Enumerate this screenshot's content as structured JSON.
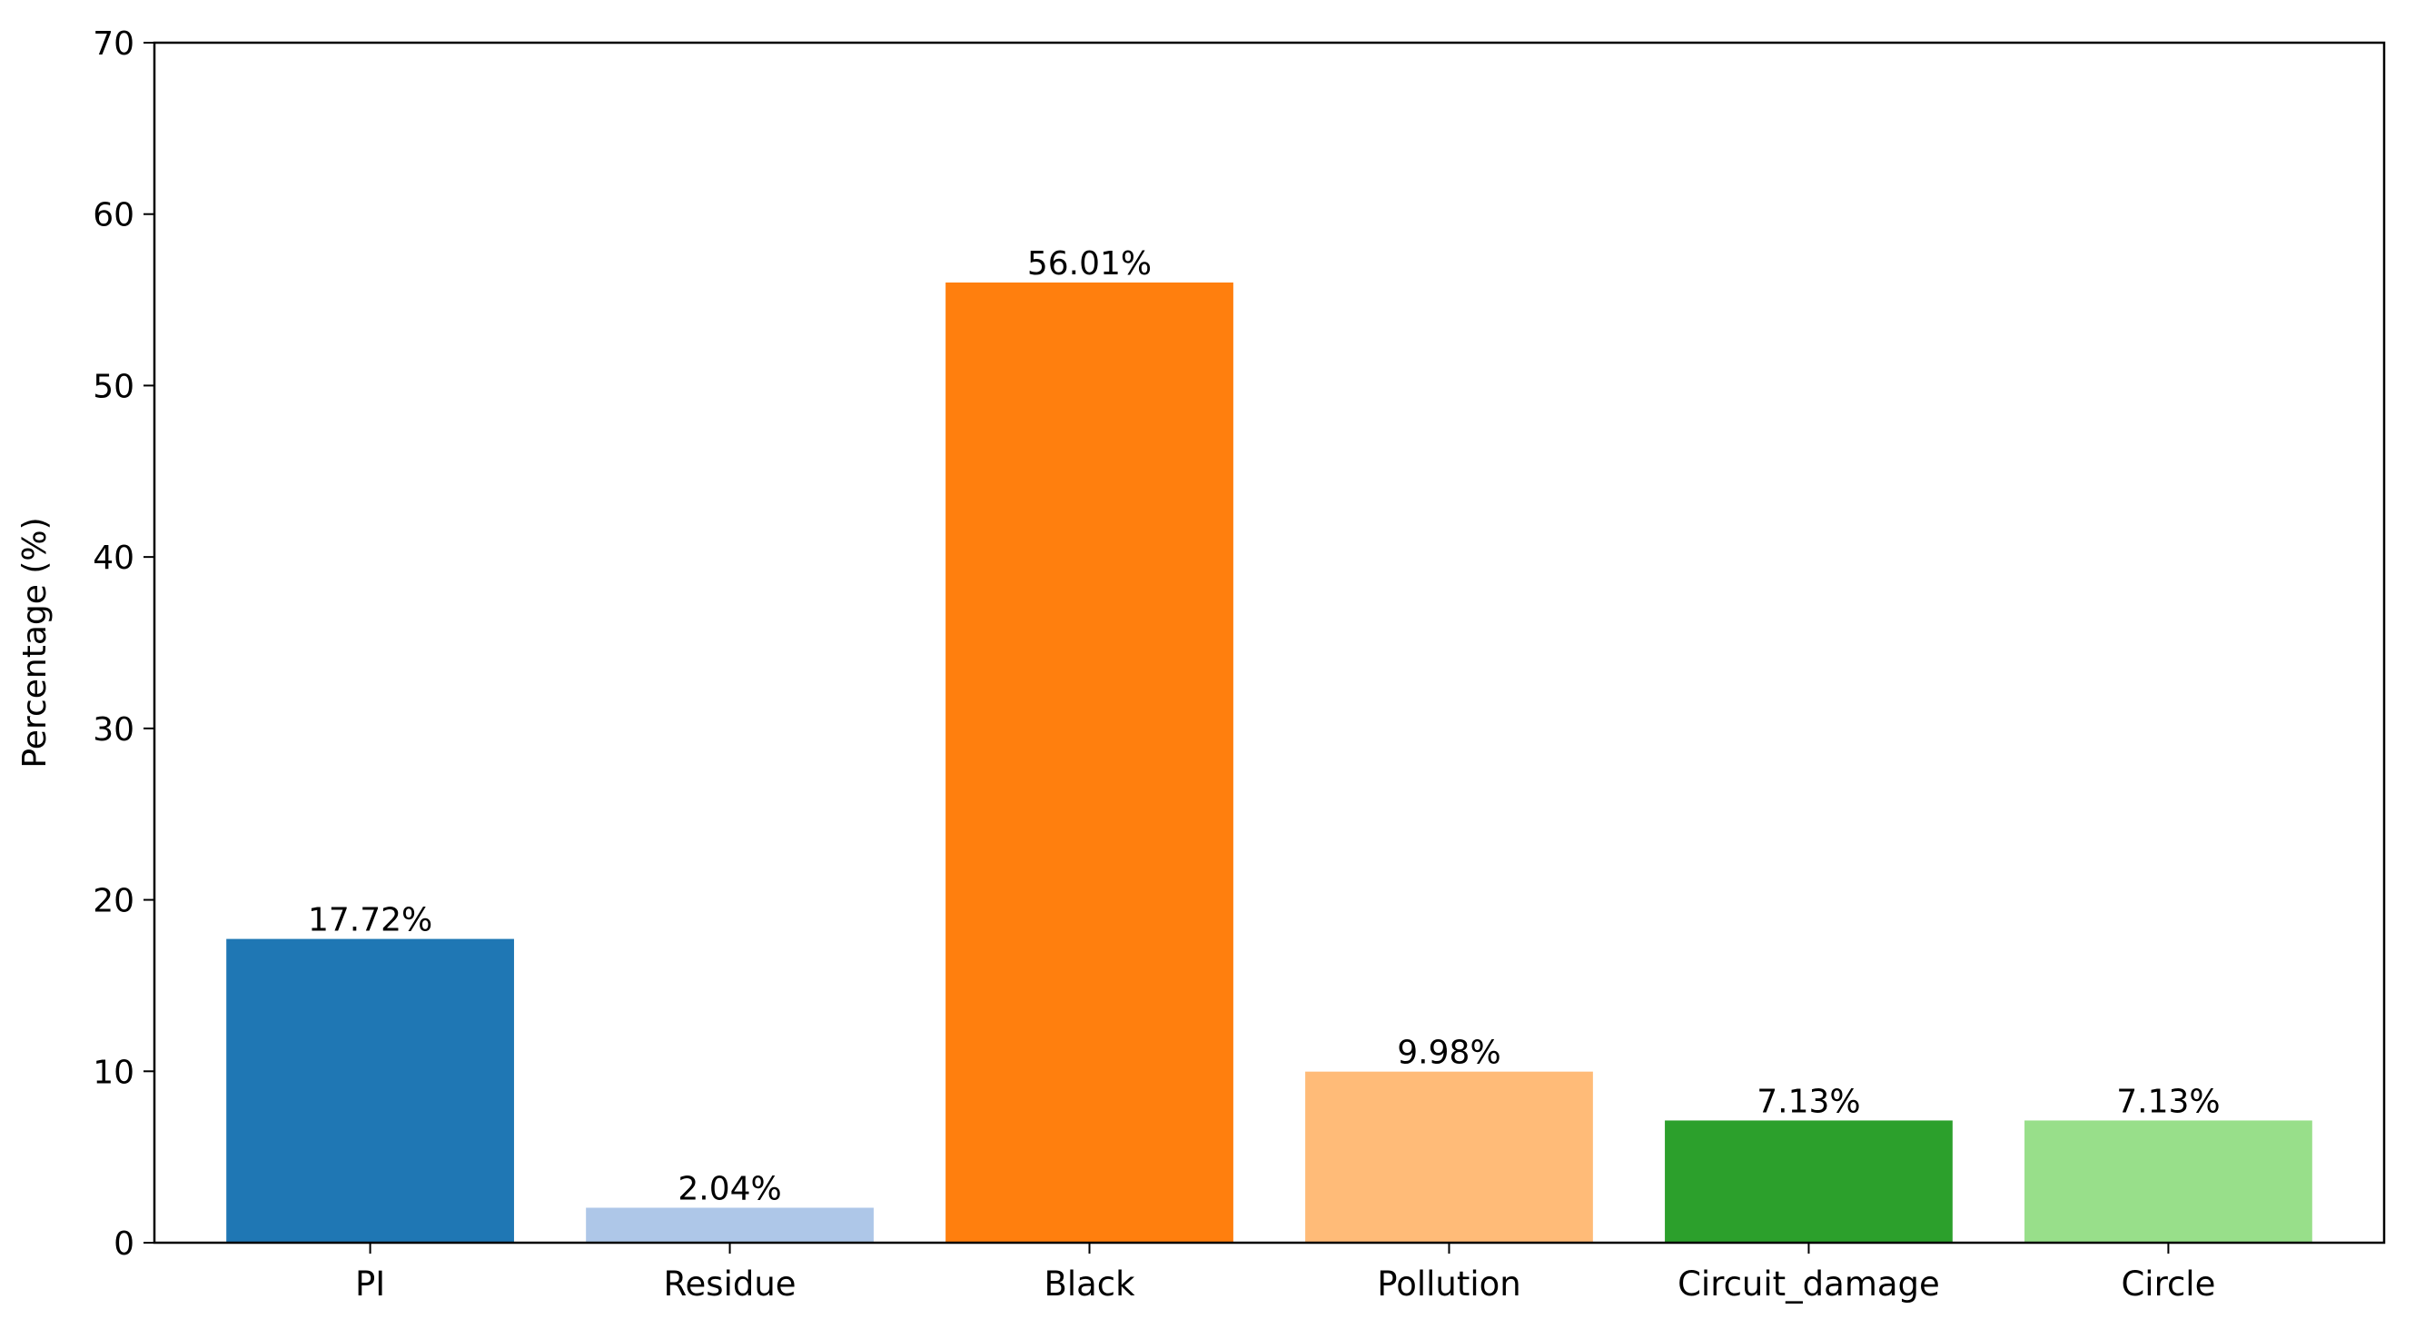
{
  "chart_data": {
    "type": "bar",
    "title": "",
    "xlabel": "",
    "ylabel": "Percentage (%)",
    "ylim": [
      0,
      70
    ],
    "yticks": [
      0,
      10,
      20,
      30,
      40,
      50,
      60,
      70
    ],
    "grid": false,
    "categories": [
      "PI",
      "Residue",
      "Black",
      "Pollution",
      "Circuit_damage",
      "Circle"
    ],
    "values": [
      17.72,
      2.04,
      56.01,
      9.98,
      7.13,
      7.13
    ],
    "data_labels": [
      "17.72%",
      "2.04%",
      "56.01%",
      "9.98%",
      "7.13%",
      "7.13%"
    ],
    "colors": [
      "#1f77b4",
      "#aec7e8",
      "#ff7f0e",
      "#ffbb78",
      "#2ca02c",
      "#98df8a"
    ]
  }
}
